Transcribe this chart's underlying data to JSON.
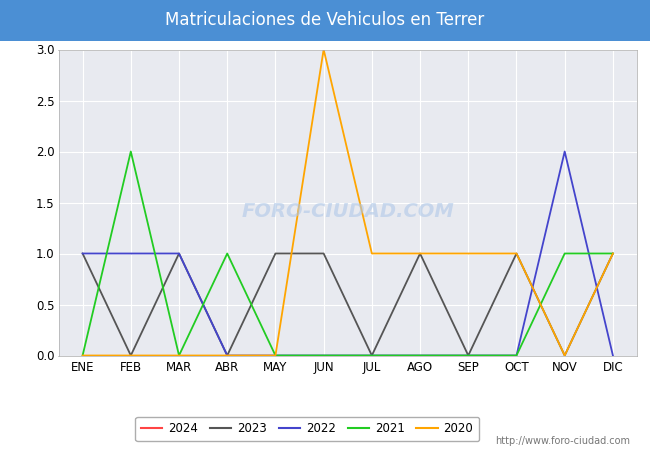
{
  "title": "Matriculaciones de Vehiculos en Terrer",
  "title_bg_color": "#4B8FD4",
  "title_text_color": "white",
  "months": [
    "ENE",
    "FEB",
    "MAR",
    "ABR",
    "MAY",
    "JUN",
    "JUL",
    "AGO",
    "SEP",
    "OCT",
    "NOV",
    "DIC"
  ],
  "series": {
    "2024": {
      "color": "#FF4444",
      "values": [
        0,
        0,
        0,
        0,
        0,
        null,
        null,
        null,
        null,
        null,
        null,
        null
      ]
    },
    "2023": {
      "color": "#555555",
      "values": [
        1,
        0,
        1,
        0,
        1,
        1,
        0,
        1,
        0,
        1,
        0,
        1
      ]
    },
    "2022": {
      "color": "#4444CC",
      "values": [
        1,
        1,
        1,
        0,
        0,
        0,
        0,
        0,
        0,
        0,
        2,
        0
      ]
    },
    "2021": {
      "color": "#22CC22",
      "values": [
        0,
        2,
        0,
        1,
        0,
        0,
        0,
        0,
        0,
        0,
        1,
        1
      ]
    },
    "2020": {
      "color": "#FFA500",
      "values": [
        0,
        0,
        0,
        0,
        0,
        3,
        1,
        1,
        1,
        1,
        0,
        1
      ]
    }
  },
  "ylim": [
    0.0,
    3.0
  ],
  "yticks": [
    0.0,
    0.5,
    1.0,
    1.5,
    2.0,
    2.5,
    3.0
  ],
  "plot_bg_color": "#E8EAF0",
  "grid_color": "white",
  "fig_bg_color": "#FFFFFF",
  "watermark_text": "FORO-CIUDAD.COM",
  "watermark_url": "http://www.foro-ciudad.com",
  "legend_years": [
    "2024",
    "2023",
    "2022",
    "2021",
    "2020"
  ]
}
